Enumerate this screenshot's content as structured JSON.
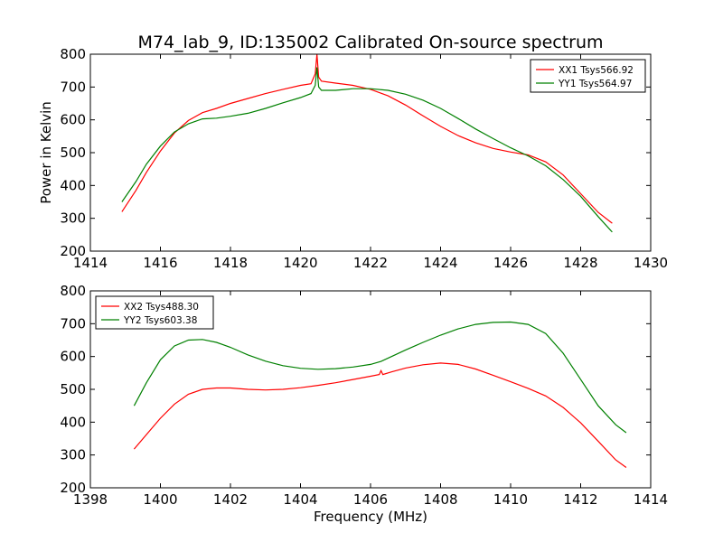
{
  "title": "M74_lab_9, ID:135002 Calibrated On-source spectrum",
  "chart_data": [
    {
      "type": "line",
      "ylabel": "Power in Kelvin",
      "xlabel": "",
      "xlim": [
        1414,
        1430
      ],
      "ylim": [
        200,
        800
      ],
      "xticks": [
        1414,
        1416,
        1418,
        1420,
        1422,
        1424,
        1426,
        1428,
        1430
      ],
      "yticks": [
        200,
        300,
        400,
        500,
        600,
        700,
        800
      ],
      "legend": "top-right",
      "grid": false,
      "series": [
        {
          "name": "XX1 Tsys566.92",
          "color": "#ff0000",
          "x": [
            1414.9,
            1415.3,
            1415.6,
            1416.0,
            1416.4,
            1416.8,
            1417.2,
            1417.6,
            1418.0,
            1418.5,
            1419.0,
            1419.5,
            1420.0,
            1420.3,
            1420.42,
            1420.47,
            1420.52,
            1420.6,
            1421.0,
            1421.5,
            1422.0,
            1422.5,
            1423.0,
            1423.5,
            1424.0,
            1424.5,
            1425.0,
            1425.5,
            1426.0,
            1426.5,
            1427.0,
            1427.5,
            1428.0,
            1428.5,
            1428.9
          ],
          "y": [
            320,
            385,
            440,
            505,
            560,
            598,
            622,
            635,
            650,
            665,
            680,
            693,
            705,
            710,
            740,
            800,
            730,
            718,
            712,
            705,
            693,
            673,
            645,
            612,
            580,
            552,
            530,
            513,
            502,
            493,
            472,
            432,
            375,
            318,
            285
          ]
        },
        {
          "name": "YY1 Tsys564.97",
          "color": "#008000",
          "x": [
            1414.9,
            1415.3,
            1415.6,
            1416.0,
            1416.4,
            1416.8,
            1417.2,
            1417.6,
            1418.0,
            1418.5,
            1419.0,
            1419.5,
            1420.0,
            1420.3,
            1420.42,
            1420.47,
            1420.52,
            1420.6,
            1421.0,
            1421.5,
            1422.0,
            1422.5,
            1423.0,
            1423.5,
            1424.0,
            1424.5,
            1425.0,
            1425.5,
            1426.0,
            1426.5,
            1427.0,
            1427.5,
            1428.0,
            1428.5,
            1428.9
          ],
          "y": [
            350,
            412,
            465,
            520,
            563,
            588,
            603,
            605,
            611,
            620,
            635,
            652,
            668,
            680,
            705,
            760,
            700,
            690,
            690,
            695,
            695,
            690,
            678,
            660,
            635,
            604,
            572,
            543,
            515,
            490,
            460,
            418,
            367,
            305,
            258
          ]
        }
      ]
    },
    {
      "type": "line",
      "ylabel": "",
      "xlabel": "Frequency (MHz)",
      "xlim": [
        1398,
        1414
      ],
      "ylim": [
        200,
        800
      ],
      "xticks": [
        1398,
        1400,
        1402,
        1404,
        1406,
        1408,
        1410,
        1412,
        1414
      ],
      "yticks": [
        200,
        300,
        400,
        500,
        600,
        700,
        800
      ],
      "legend": "top-left",
      "grid": false,
      "series": [
        {
          "name": "XX2 Tsys488.30",
          "color": "#ff0000",
          "x": [
            1399.25,
            1399.6,
            1400.0,
            1400.4,
            1400.8,
            1401.2,
            1401.6,
            1402.0,
            1402.5,
            1403.0,
            1403.5,
            1404.0,
            1404.5,
            1405.0,
            1405.5,
            1406.0,
            1406.25,
            1406.3,
            1406.35,
            1406.6,
            1407.0,
            1407.5,
            1408.0,
            1408.5,
            1409.0,
            1409.5,
            1410.0,
            1410.5,
            1411.0,
            1411.5,
            1412.0,
            1412.5,
            1413.0,
            1413.3
          ],
          "y": [
            318,
            362,
            412,
            455,
            485,
            500,
            504,
            504,
            500,
            498,
            500,
            505,
            512,
            520,
            530,
            540,
            545,
            557,
            545,
            553,
            565,
            575,
            580,
            576,
            562,
            543,
            523,
            503,
            480,
            445,
            398,
            342,
            285,
            262
          ]
        },
        {
          "name": "YY2 Tsys603.38",
          "color": "#008000",
          "x": [
            1399.25,
            1399.6,
            1400.0,
            1400.4,
            1400.8,
            1401.2,
            1401.6,
            1402.0,
            1402.5,
            1403.0,
            1403.5,
            1404.0,
            1404.5,
            1405.0,
            1405.5,
            1406.0,
            1406.3,
            1406.6,
            1407.0,
            1407.5,
            1408.0,
            1408.5,
            1409.0,
            1409.5,
            1410.0,
            1410.5,
            1411.0,
            1411.5,
            1412.0,
            1412.5,
            1413.0,
            1413.3
          ],
          "y": [
            450,
            520,
            590,
            632,
            650,
            652,
            643,
            628,
            605,
            586,
            572,
            564,
            561,
            563,
            568,
            576,
            585,
            600,
            620,
            643,
            665,
            684,
            698,
            704,
            705,
            698,
            670,
            610,
            530,
            450,
            392,
            368
          ]
        }
      ]
    }
  ]
}
